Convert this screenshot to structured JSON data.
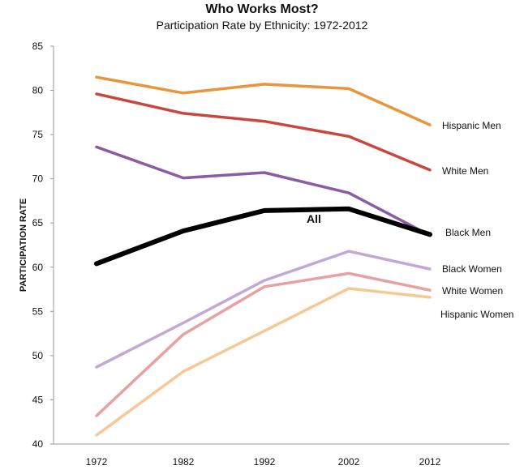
{
  "chart_data": {
    "type": "line",
    "title": "Who Works Most?",
    "subtitle": "Participation Rate by Ethnicity: 1972-2012",
    "ylabel": "PARTICIPATION RATE",
    "xlabel": "",
    "x": [
      1972,
      1982,
      1992,
      2002,
      2012
    ],
    "ylim": [
      40,
      85
    ],
    "yticks": [
      40,
      45,
      50,
      55,
      60,
      65,
      70,
      75,
      80,
      85
    ],
    "grid": false,
    "legend": "none",
    "series": [
      {
        "name": "Hispanic Men",
        "color": "#e8953c",
        "values": [
          81.5,
          79.7,
          80.7,
          80.2,
          76.1
        ]
      },
      {
        "name": "White Men",
        "color": "#c9473e",
        "values": [
          79.6,
          77.4,
          76.5,
          74.8,
          71.0
        ]
      },
      {
        "name": "Black Men",
        "color": "#8a5ca3",
        "values": [
          73.6,
          70.1,
          70.7,
          68.4,
          63.6
        ]
      },
      {
        "name": "All",
        "color": "#000000",
        "values": [
          60.4,
          64.1,
          66.4,
          66.6,
          63.7
        ]
      },
      {
        "name": "Black Women",
        "color": "#c2a8d6",
        "values": [
          48.7,
          53.7,
          58.5,
          61.8,
          59.8
        ]
      },
      {
        "name": "White Women",
        "color": "#e8a0a0",
        "values": [
          43.2,
          52.4,
          57.8,
          59.3,
          57.4
        ]
      },
      {
        "name": "Hispanic Women",
        "color": "#f7c896",
        "values": [
          41.0,
          48.2,
          52.8,
          57.6,
          56.6
        ]
      }
    ]
  }
}
